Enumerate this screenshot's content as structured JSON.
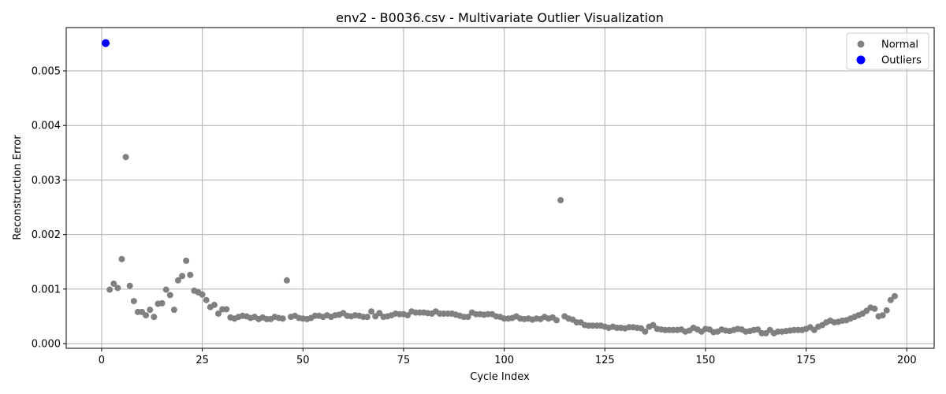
{
  "chart_data": {
    "type": "scatter",
    "title": "env2 - B0036.csv - Multivariate Outlier Visualization",
    "xlabel": "Cycle Index",
    "ylabel": "Reconstruction Error",
    "xlim": [
      -8.8,
      206.8
    ],
    "ylim": [
      -8.56e-05,
      0.0057946
    ],
    "xticks": [
      0,
      25,
      50,
      75,
      100,
      125,
      150,
      175,
      200
    ],
    "xtick_labels": [
      "0",
      "25",
      "50",
      "75",
      "100",
      "125",
      "150",
      "175",
      "200"
    ],
    "yticks": [
      0.0,
      0.001,
      0.002,
      0.003,
      0.004,
      0.005
    ],
    "ytick_labels": [
      "0.000",
      "0.001",
      "0.002",
      "0.003",
      "0.004",
      "0.005"
    ],
    "grid": true,
    "legend_position": "top-right",
    "series": [
      {
        "name": "Normal",
        "color": "#808080",
        "points": [
          [
            2,
            0.00099
          ],
          [
            3,
            0.0011
          ],
          [
            4,
            0.00102
          ],
          [
            5,
            0.00155
          ],
          [
            6,
            0.00342
          ],
          [
            7,
            0.00106
          ],
          [
            8,
            0.00078
          ],
          [
            9,
            0.00058
          ],
          [
            10,
            0.00058
          ],
          [
            11,
            0.00052
          ],
          [
            12,
            0.00062
          ],
          [
            13,
            0.00049
          ],
          [
            14,
            0.00073
          ],
          [
            15,
            0.00074
          ],
          [
            16,
            0.00099
          ],
          [
            17,
            0.00089
          ],
          [
            18,
            0.00062
          ],
          [
            19,
            0.00116
          ],
          [
            20,
            0.00124
          ],
          [
            21,
            0.00152
          ],
          [
            22,
            0.00126
          ],
          [
            23,
            0.00097
          ],
          [
            24,
            0.00094
          ],
          [
            25,
            0.0009
          ],
          [
            26,
            0.0008
          ],
          [
            27,
            0.00067
          ],
          [
            28,
            0.00071
          ],
          [
            29,
            0.00055
          ],
          [
            30,
            0.00063
          ],
          [
            31,
            0.00063
          ],
          [
            32,
            0.00048
          ],
          [
            33,
            0.00046
          ],
          [
            34,
            0.00049
          ],
          [
            35,
            0.00051
          ],
          [
            36,
            0.0005
          ],
          [
            37,
            0.00047
          ],
          [
            38,
            0.00049
          ],
          [
            39,
            0.00045
          ],
          [
            40,
            0.00048
          ],
          [
            41,
            0.00045
          ],
          [
            42,
            0.00045
          ],
          [
            43,
            0.00049
          ],
          [
            44,
            0.00047
          ],
          [
            45,
            0.00046
          ],
          [
            46,
            0.00116
          ],
          [
            47,
            0.00049
          ],
          [
            48,
            0.00051
          ],
          [
            49,
            0.00047
          ],
          [
            50,
            0.00046
          ],
          [
            51,
            0.00045
          ],
          [
            52,
            0.00047
          ],
          [
            53,
            0.00051
          ],
          [
            54,
            0.00051
          ],
          [
            55,
            0.00049
          ],
          [
            56,
            0.00052
          ],
          [
            57,
            0.00049
          ],
          [
            58,
            0.00052
          ],
          [
            59,
            0.00053
          ],
          [
            60,
            0.00056
          ],
          [
            61,
            0.00051
          ],
          [
            62,
            0.0005
          ],
          [
            63,
            0.00052
          ],
          [
            64,
            0.00051
          ],
          [
            65,
            0.00049
          ],
          [
            66,
            0.00049
          ],
          [
            67,
            0.00059
          ],
          [
            68,
            0.0005
          ],
          [
            69,
            0.00056
          ],
          [
            70,
            0.00049
          ],
          [
            71,
            0.0005
          ],
          [
            72,
            0.00052
          ],
          [
            73,
            0.00055
          ],
          [
            74,
            0.00054
          ],
          [
            75,
            0.00054
          ],
          [
            76,
            0.00052
          ],
          [
            77,
            0.00059
          ],
          [
            78,
            0.00057
          ],
          [
            79,
            0.00057
          ],
          [
            80,
            0.00057
          ],
          [
            81,
            0.00056
          ],
          [
            82,
            0.00055
          ],
          [
            83,
            0.00059
          ],
          [
            84,
            0.00055
          ],
          [
            85,
            0.00055
          ],
          [
            86,
            0.00055
          ],
          [
            87,
            0.00055
          ],
          [
            88,
            0.00053
          ],
          [
            89,
            0.00051
          ],
          [
            90,
            0.00049
          ],
          [
            91,
            0.00049
          ],
          [
            92,
            0.00057
          ],
          [
            93,
            0.00054
          ],
          [
            94,
            0.00054
          ],
          [
            95,
            0.00053
          ],
          [
            96,
            0.00054
          ],
          [
            97,
            0.00054
          ],
          [
            98,
            0.0005
          ],
          [
            99,
            0.00049
          ],
          [
            100,
            0.00046
          ],
          [
            101,
            0.00046
          ],
          [
            102,
            0.00047
          ],
          [
            103,
            0.0005
          ],
          [
            104,
            0.00046
          ],
          [
            105,
            0.00045
          ],
          [
            106,
            0.00046
          ],
          [
            107,
            0.00044
          ],
          [
            108,
            0.00046
          ],
          [
            109,
            0.00045
          ],
          [
            110,
            0.00049
          ],
          [
            111,
            0.00046
          ],
          [
            112,
            0.00048
          ],
          [
            113,
            0.00043
          ],
          [
            114,
            0.00263
          ],
          [
            115,
            0.0005
          ],
          [
            116,
            0.00046
          ],
          [
            117,
            0.00044
          ],
          [
            118,
            0.00039
          ],
          [
            119,
            0.00039
          ],
          [
            120,
            0.00034
          ],
          [
            121,
            0.00033
          ],
          [
            122,
            0.00033
          ],
          [
            123,
            0.00033
          ],
          [
            124,
            0.00033
          ],
          [
            125,
            0.00031
          ],
          [
            126,
            0.00029
          ],
          [
            127,
            0.00031
          ],
          [
            128,
            0.00029
          ],
          [
            129,
            0.00029
          ],
          [
            130,
            0.00028
          ],
          [
            131,
            0.0003
          ],
          [
            132,
            0.0003
          ],
          [
            133,
            0.00029
          ],
          [
            134,
            0.00028
          ],
          [
            135,
            0.00022
          ],
          [
            136,
            0.00031
          ],
          [
            137,
            0.00034
          ],
          [
            138,
            0.00027
          ],
          [
            139,
            0.00026
          ],
          [
            140,
            0.00025
          ],
          [
            141,
            0.00025
          ],
          [
            142,
            0.00025
          ],
          [
            143,
            0.00025
          ],
          [
            144,
            0.00026
          ],
          [
            145,
            0.00022
          ],
          [
            146,
            0.00024
          ],
          [
            147,
            0.00029
          ],
          [
            148,
            0.00026
          ],
          [
            149,
            0.00022
          ],
          [
            150,
            0.00027
          ],
          [
            151,
            0.00026
          ],
          [
            152,
            0.00021
          ],
          [
            153,
            0.00022
          ],
          [
            154,
            0.00026
          ],
          [
            155,
            0.00024
          ],
          [
            156,
            0.00023
          ],
          [
            157,
            0.00025
          ],
          [
            158,
            0.00027
          ],
          [
            159,
            0.00026
          ],
          [
            160,
            0.00022
          ],
          [
            161,
            0.00023
          ],
          [
            162,
            0.00025
          ],
          [
            163,
            0.00026
          ],
          [
            164,
            0.00019
          ],
          [
            165,
            0.00019
          ],
          [
            166,
            0.00025
          ],
          [
            167,
            0.00019
          ],
          [
            168,
            0.00022
          ],
          [
            169,
            0.00022
          ],
          [
            170,
            0.00023
          ],
          [
            171,
            0.00024
          ],
          [
            172,
            0.00025
          ],
          [
            173,
            0.00025
          ],
          [
            174,
            0.00025
          ],
          [
            175,
            0.00027
          ],
          [
            176,
            0.0003
          ],
          [
            177,
            0.00025
          ],
          [
            178,
            0.00031
          ],
          [
            179,
            0.00034
          ],
          [
            180,
            0.00039
          ],
          [
            181,
            0.00042
          ],
          [
            182,
            0.00039
          ],
          [
            183,
            0.0004
          ],
          [
            184,
            0.00042
          ],
          [
            185,
            0.00043
          ],
          [
            186,
            0.00046
          ],
          [
            187,
            0.00049
          ],
          [
            188,
            0.00052
          ],
          [
            189,
            0.00055
          ],
          [
            190,
            0.0006
          ],
          [
            191,
            0.00066
          ],
          [
            192,
            0.00064
          ],
          [
            193,
            0.0005
          ],
          [
            194,
            0.00052
          ],
          [
            195,
            0.00061
          ],
          [
            196,
            0.0008
          ],
          [
            197,
            0.00087
          ]
        ]
      },
      {
        "name": "Outliers",
        "color": "#0000ff",
        "points": [
          [
            1,
            0.00551
          ]
        ]
      }
    ]
  }
}
